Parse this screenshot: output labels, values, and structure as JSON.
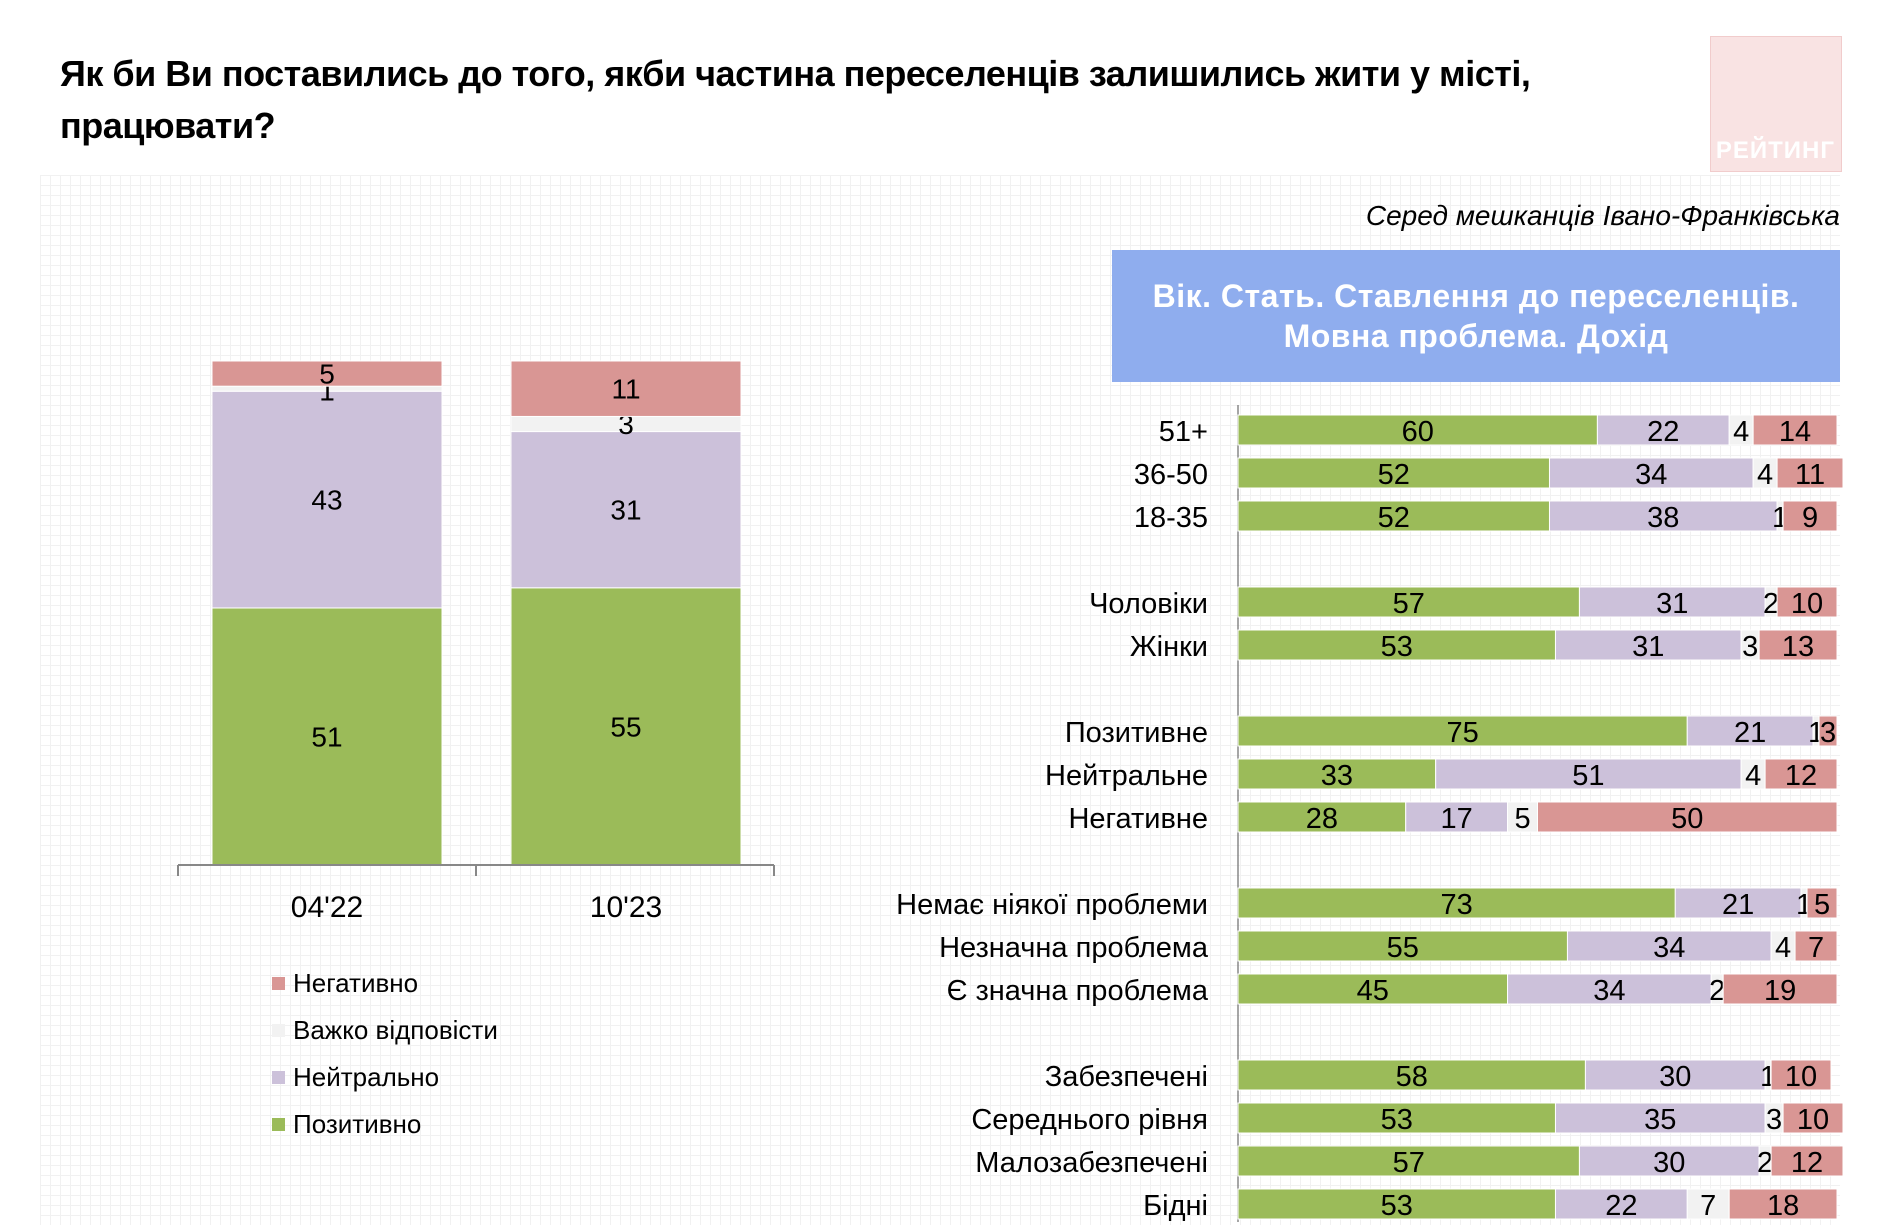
{
  "title": "Як би Ви поставились до того, якби частина переселенців залишились жити у місті, працювати?",
  "logo_text": "РЕЙТИНГ",
  "subtitle": "Серед мешканців Івано-Франківська",
  "panel_header": "Вік. Стать. Ставлення до переселенців. Мовна проблема. Дохід",
  "colors": {
    "Позитивно": "#9bbb59",
    "Нейтрально": "#ccc1da",
    "Важко відповісти": "#f2f2f2",
    "Негативно": "#d99694",
    "header": "#8fadee"
  },
  "legend": [
    {
      "label": "Негативно",
      "color": "#d99694"
    },
    {
      "label": "Важко відповісти",
      "color": "#f2f2f2"
    },
    {
      "label": "Нейтрально",
      "color": "#ccc1da"
    },
    {
      "label": "Позитивно",
      "color": "#9bbb59"
    }
  ],
  "chart_data": [
    {
      "type": "bar",
      "stacked": true,
      "orientation": "vertical",
      "categories": [
        "04'22",
        "10'23"
      ],
      "series": [
        {
          "name": "Позитивно",
          "values": [
            51,
            55
          ]
        },
        {
          "name": "Нейтрально",
          "values": [
            43,
            31
          ]
        },
        {
          "name": "Важко відповісти",
          "values": [
            1,
            3
          ]
        },
        {
          "name": "Негативно",
          "values": [
            5,
            11
          ]
        }
      ],
      "ylim": [
        0,
        100
      ],
      "legend_position": "bottom-left"
    },
    {
      "type": "bar",
      "stacked": true,
      "orientation": "horizontal",
      "groups": [
        {
          "rows": [
            {
              "label": "51+",
              "values": [
                60,
                22,
                4,
                14
              ]
            },
            {
              "label": "36-50",
              "values": [
                52,
                34,
                4,
                11
              ]
            },
            {
              "label": "18-35",
              "values": [
                52,
                38,
                1,
                9
              ]
            }
          ]
        },
        {
          "rows": [
            {
              "label": "Чоловіки",
              "values": [
                57,
                31,
                2,
                10
              ]
            },
            {
              "label": "Жінки",
              "values": [
                53,
                31,
                3,
                13
              ]
            }
          ]
        },
        {
          "rows": [
            {
              "label": "Позитивне",
              "values": [
                75,
                21,
                1,
                3
              ]
            },
            {
              "label": "Нейтральне",
              "values": [
                33,
                51,
                4,
                12
              ]
            },
            {
              "label": "Негативне",
              "values": [
                28,
                17,
                5,
                50
              ]
            }
          ]
        },
        {
          "rows": [
            {
              "label": "Немає ніякої проблеми",
              "values": [
                73,
                21,
                1,
                5
              ]
            },
            {
              "label": "Незначна проблема",
              "values": [
                55,
                34,
                4,
                7
              ]
            },
            {
              "label": "Є значна проблема",
              "values": [
                45,
                34,
                2,
                19
              ]
            }
          ]
        },
        {
          "rows": [
            {
              "label": "Забезпечені",
              "values": [
                58,
                30,
                1,
                10
              ]
            },
            {
              "label": "Середнього рівня",
              "values": [
                53,
                35,
                3,
                10
              ]
            },
            {
              "label": "Малозабезпечені",
              "values": [
                57,
                30,
                2,
                12
              ]
            },
            {
              "label": "Бідні",
              "values": [
                53,
                22,
                7,
                18
              ]
            }
          ]
        }
      ],
      "series_order": [
        "Позитивно",
        "Нейтрально",
        "Важко відповісти",
        "Негативно"
      ],
      "xlim": [
        0,
        100
      ]
    }
  ]
}
